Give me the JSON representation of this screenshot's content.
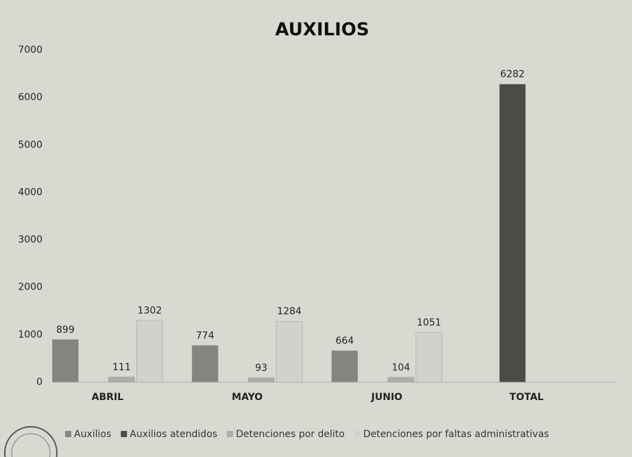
{
  "chart_data": {
    "type": "bar",
    "title": "AUXILIOS",
    "categories": [
      "ABRIL",
      "MAYO",
      "JUNIO",
      "TOTAL"
    ],
    "series": [
      {
        "name": "Auxilios",
        "color": "#858580",
        "values": [
          899,
          774,
          664,
          null
        ]
      },
      {
        "name": "Auxilios atendidos",
        "color": "#4b4b48",
        "values": [
          null,
          null,
          null,
          6282
        ]
      },
      {
        "name": "Detenciones por delito",
        "color": "#aeaea8",
        "values": [
          111,
          93,
          104,
          null
        ]
      },
      {
        "name": "Detenciones por faltas administrativas",
        "color": "#d2d2cc",
        "values": [
          1302,
          1284,
          1051,
          null
        ]
      }
    ],
    "ylim": [
      0,
      7000
    ],
    "yticks": [
      0,
      1000,
      2000,
      3000,
      4000,
      5000,
      6000,
      7000
    ],
    "grid": false,
    "legend": "bottom"
  }
}
